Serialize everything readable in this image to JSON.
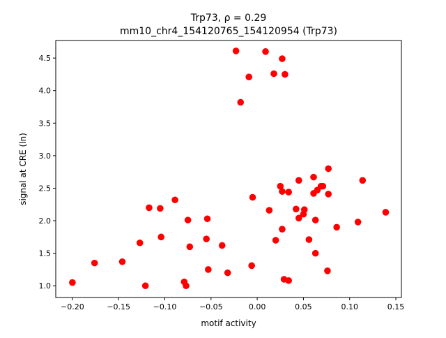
{
  "chart_data": {
    "type": "scatter",
    "title_line1": "Trp73, ρ = 0.29",
    "title_line2": "mm10_chr4_154120765_154120954 (Trp73)",
    "xlabel": "motif activity",
    "ylabel": "signal at CRE (ln)",
    "xlim": [
      -0.218,
      0.156
    ],
    "ylim": [
      0.82,
      4.77
    ],
    "xticks": [
      -0.2,
      -0.15,
      -0.1,
      -0.05,
      0.0,
      0.05,
      0.1,
      0.15
    ],
    "xtick_labels": [
      "−0.20",
      "−0.15",
      "−0.10",
      "−0.05",
      "0.00",
      "0.05",
      "0.10",
      "0.15"
    ],
    "yticks": [
      1.0,
      1.5,
      2.0,
      2.5,
      3.0,
      3.5,
      4.0,
      4.5
    ],
    "ytick_labels": [
      "1.0",
      "1.5",
      "2.0",
      "2.5",
      "3.0",
      "3.5",
      "4.0",
      "4.5"
    ],
    "grid": false,
    "marker_color": "#ff0000",
    "points": [
      [
        -0.2,
        1.05
      ],
      [
        -0.176,
        1.35
      ],
      [
        -0.146,
        1.37
      ],
      [
        -0.127,
        1.66
      ],
      [
        -0.121,
        1.0
      ],
      [
        -0.117,
        2.2
      ],
      [
        -0.105,
        2.19
      ],
      [
        -0.104,
        1.75
      ],
      [
        -0.089,
        2.32
      ],
      [
        -0.079,
        1.06
      ],
      [
        -0.077,
        1.0
      ],
      [
        -0.075,
        2.01
      ],
      [
        -0.073,
        1.6
      ],
      [
        -0.055,
        1.72
      ],
      [
        -0.054,
        2.03
      ],
      [
        -0.053,
        1.25
      ],
      [
        -0.038,
        1.62
      ],
      [
        -0.032,
        1.2
      ],
      [
        -0.023,
        4.61
      ],
      [
        -0.018,
        3.82
      ],
      [
        -0.009,
        4.21
      ],
      [
        -0.006,
        1.31
      ],
      [
        -0.005,
        2.36
      ],
      [
        0.009,
        4.6
      ],
      [
        0.013,
        2.16
      ],
      [
        0.018,
        4.26
      ],
      [
        0.02,
        1.7
      ],
      [
        0.025,
        2.53
      ],
      [
        0.027,
        2.45
      ],
      [
        0.027,
        4.49
      ],
      [
        0.027,
        1.87
      ],
      [
        0.029,
        1.1
      ],
      [
        0.03,
        4.25
      ],
      [
        0.034,
        2.44
      ],
      [
        0.034,
        1.08
      ],
      [
        0.042,
        2.18
      ],
      [
        0.045,
        2.04
      ],
      [
        0.045,
        2.62
      ],
      [
        0.051,
        2.17
      ],
      [
        0.05,
        2.1
      ],
      [
        0.056,
        1.71
      ],
      [
        0.061,
        2.42
      ],
      [
        0.061,
        2.67
      ],
      [
        0.063,
        2.01
      ],
      [
        0.063,
        1.5
      ],
      [
        0.065,
        2.47
      ],
      [
        0.069,
        2.53
      ],
      [
        0.071,
        2.53
      ],
      [
        0.077,
        2.8
      ],
      [
        0.077,
        2.41
      ],
      [
        0.076,
        1.23
      ],
      [
        0.086,
        1.9
      ],
      [
        0.109,
        1.98
      ],
      [
        0.114,
        2.62
      ],
      [
        0.139,
        2.13
      ]
    ]
  }
}
